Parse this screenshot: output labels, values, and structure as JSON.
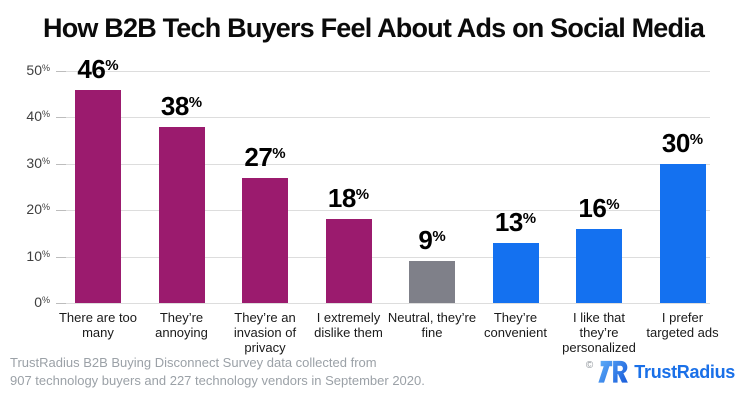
{
  "title": "How B2B Tech Buyers Feel About Ads on Social Media",
  "chart_data": {
    "type": "bar",
    "title": "How B2B Tech Buyers Feel About Ads on Social Media",
    "categories": [
      "There are too many",
      "They’re annoying",
      "They’re an invasion of privacy",
      "I extremely dislike them",
      "Neutral, they’re fine",
      "They’re convenient",
      "I like that they’re personalized",
      "I prefer targeted ads"
    ],
    "values": [
      46,
      38,
      27,
      18,
      9,
      13,
      16,
      30
    ],
    "value_suffix": "%",
    "bar_colors": [
      "#9B1B6E",
      "#9B1B6E",
      "#9B1B6E",
      "#9B1B6E",
      "#7F8089",
      "#1471F0",
      "#1471F0",
      "#1471F0"
    ],
    "xlabel": "",
    "ylabel": "",
    "ylim": [
      0,
      50
    ],
    "yticks": [
      0,
      10,
      20,
      30,
      40,
      50
    ],
    "ytick_suffix": "%",
    "grid": true,
    "legend": false
  },
  "footer": {
    "source_line1": "TrustRadius B2B Buying Disconnect Survey data collected from",
    "source_line2": "907 technology buyers and 227 technology vendors in September 2020.",
    "copyright": "©",
    "brand": "TrustRadius"
  },
  "colors": {
    "negative_bar": "#9B1B6E",
    "neutral_bar": "#7F8089",
    "positive_bar": "#1471F0",
    "gridline": "#DDDDDD",
    "brand_blue": "#1A70E8"
  }
}
